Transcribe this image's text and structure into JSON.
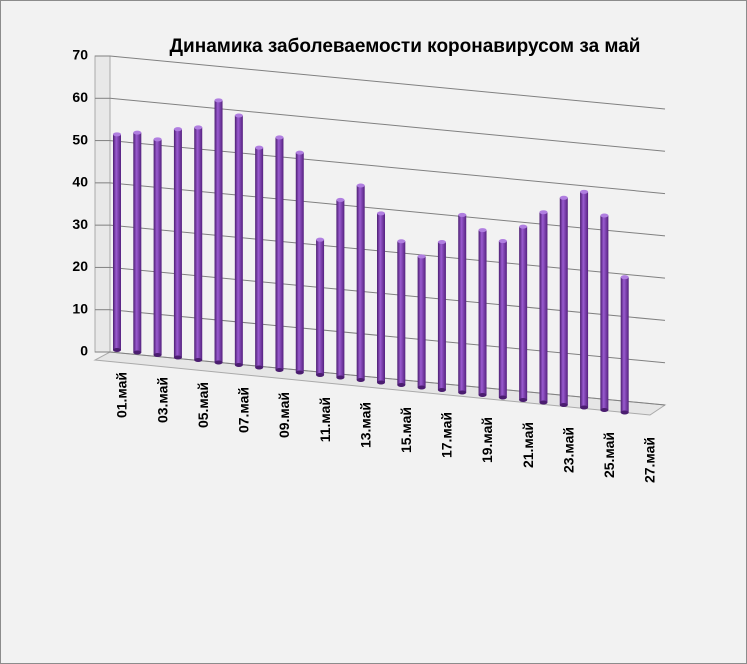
{
  "chart_data": {
    "type": "bar",
    "title": "Динамика заболеваемости коронавирусом за май",
    "categories": [
      "01.май",
      null,
      "03.май",
      null,
      "05.май",
      null,
      "07.май",
      null,
      "09.май",
      null,
      "11.май",
      null,
      "13.май",
      null,
      "15.май",
      null,
      "17.май",
      null,
      "19.май",
      null,
      "21.май",
      null,
      "23.май",
      null,
      "25.май",
      null,
      "27.май"
    ],
    "values": [
      51,
      52,
      51,
      54,
      55,
      62,
      59,
      52,
      55,
      52,
      32,
      42,
      46,
      40,
      34,
      31,
      35,
      42,
      39,
      37,
      41,
      45,
      49,
      51,
      46,
      32,
      null
    ],
    "color": "#7030a0",
    "ylim": [
      0,
      70
    ],
    "yticks": [
      0,
      10,
      20,
      30,
      40,
      50,
      60,
      70
    ],
    "grid": true
  }
}
